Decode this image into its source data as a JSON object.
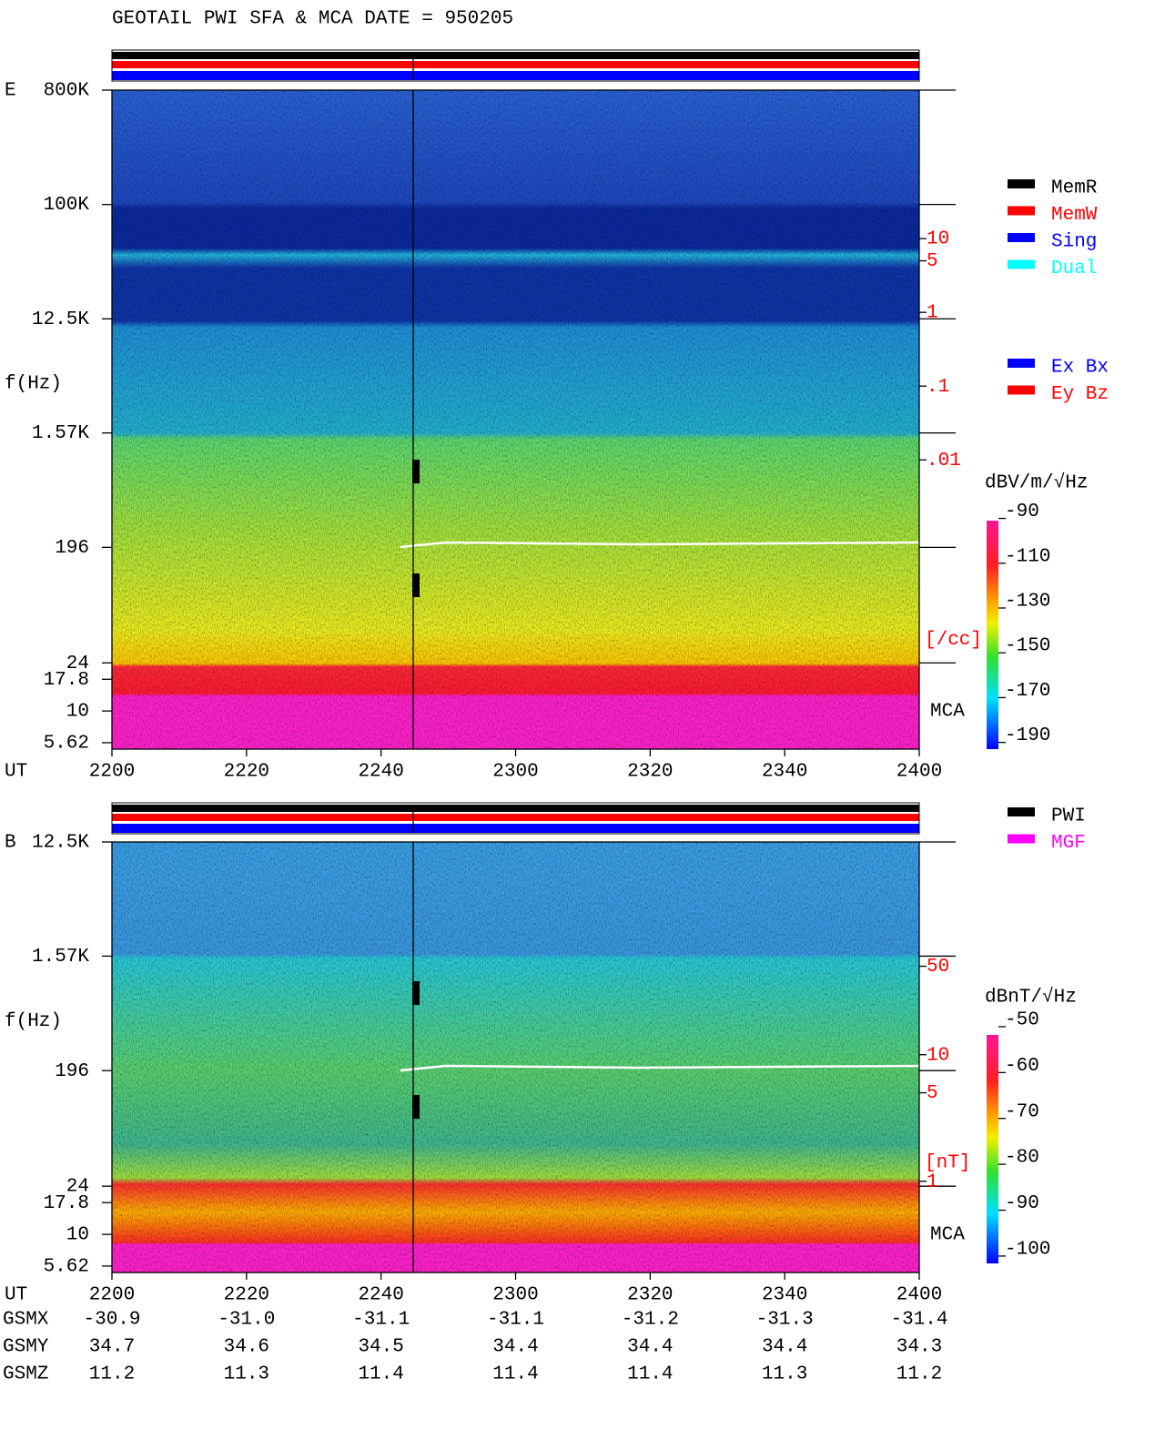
{
  "header": {
    "title": "GEOTAIL  PWI SFA & MCA   DATE = 950205"
  },
  "chart_data": [
    {
      "type": "spectrogram",
      "panel_label": "E",
      "ylabel": "f(Hz)",
      "xlabel": "UT",
      "categories": [
        "2200",
        "2220",
        "2240",
        "2300",
        "2320",
        "2340",
        "2400"
      ],
      "yscale": "log",
      "ylim": [
        5,
        800000
      ],
      "yticks": [
        {
          "value": 800000,
          "label": "800K"
        },
        {
          "value": 100000,
          "label": "100K"
        },
        {
          "value": 12500,
          "label": "12.5K"
        },
        {
          "value": 1570,
          "label": "1.57K"
        },
        196,
        24,
        17.8,
        10,
        5.62
      ],
      "mca_label": "MCA",
      "y2scale": "log",
      "y2lim": [
        1.2e-06,
        1030
      ],
      "y2color": "#ff0000",
      "y2label": "[/cc]",
      "y2ticks": [
        10,
        5,
        1,
        {
          "value": 0.1,
          "label": ".1"
        },
        {
          "value": 0.01,
          "label": ".01"
        }
      ],
      "colorbar": {
        "label": "dBV/m/√Hz",
        "lim": [
          -193,
          -91
        ],
        "ticks": [
          -90,
          -110,
          -130,
          -150,
          -170,
          -190
        ]
      },
      "legends": [
        [
          {
            "name": "MemR",
            "color": "#000000"
          },
          {
            "name": "MemW",
            "color": "#ff0000"
          },
          {
            "name": "Sing",
            "color": "#0000ff"
          },
          {
            "name": "Dual",
            "color": "#00ffff"
          }
        ],
        [
          {
            "name": "Ex Bx",
            "color": "#0000ff"
          },
          {
            "name": "Ey Bz",
            "color": "#ff0000"
          }
        ]
      ]
    },
    {
      "type": "spectrogram",
      "panel_label": "B",
      "ylabel": "f(Hz)",
      "xlabel": "UT",
      "categories": [
        "2200",
        "2220",
        "2240",
        "2300",
        "2320",
        "2340",
        "2400"
      ],
      "yscale": "log",
      "ylim": [
        5,
        12500
      ],
      "yticks": [
        {
          "value": 12500,
          "label": "12.5K"
        },
        {
          "value": 1570,
          "label": "1.57K"
        },
        196,
        24,
        17.8,
        10,
        5.62
      ],
      "mca_label": "MCA",
      "y2scale": "log",
      "y2lim": [
        0.19,
        480
      ],
      "y2color": "#ff0000",
      "y2label": "[nT]",
      "y2ticks": [
        50,
        10,
        5,
        1
      ],
      "colorbar": {
        "label": "dBnT/√Hz",
        "lim": [
          -101.6,
          -51.8
        ],
        "ticks": [
          -50,
          -60,
          -70,
          -80,
          -90,
          -100
        ]
      },
      "legends": [
        [
          {
            "name": "PWI",
            "color": "#000000"
          },
          {
            "name": "MGF",
            "color": "#ff00ff"
          }
        ]
      ]
    }
  ],
  "orbit": {
    "rows": [
      {
        "label": "GSMX",
        "values": [
          "-30.9",
          "-31.0",
          "-31.1",
          "-31.1",
          "-31.2",
          "-31.3",
          "-31.4"
        ]
      },
      {
        "label": "GSMY",
        "values": [
          "34.7",
          "34.6",
          "34.5",
          "34.4",
          "34.4",
          "34.4",
          "34.3"
        ]
      },
      {
        "label": "GSMZ",
        "values": [
          "11.2",
          "11.3",
          "11.4",
          "11.4",
          "11.4",
          "11.3",
          "11.2"
        ]
      }
    ]
  }
}
